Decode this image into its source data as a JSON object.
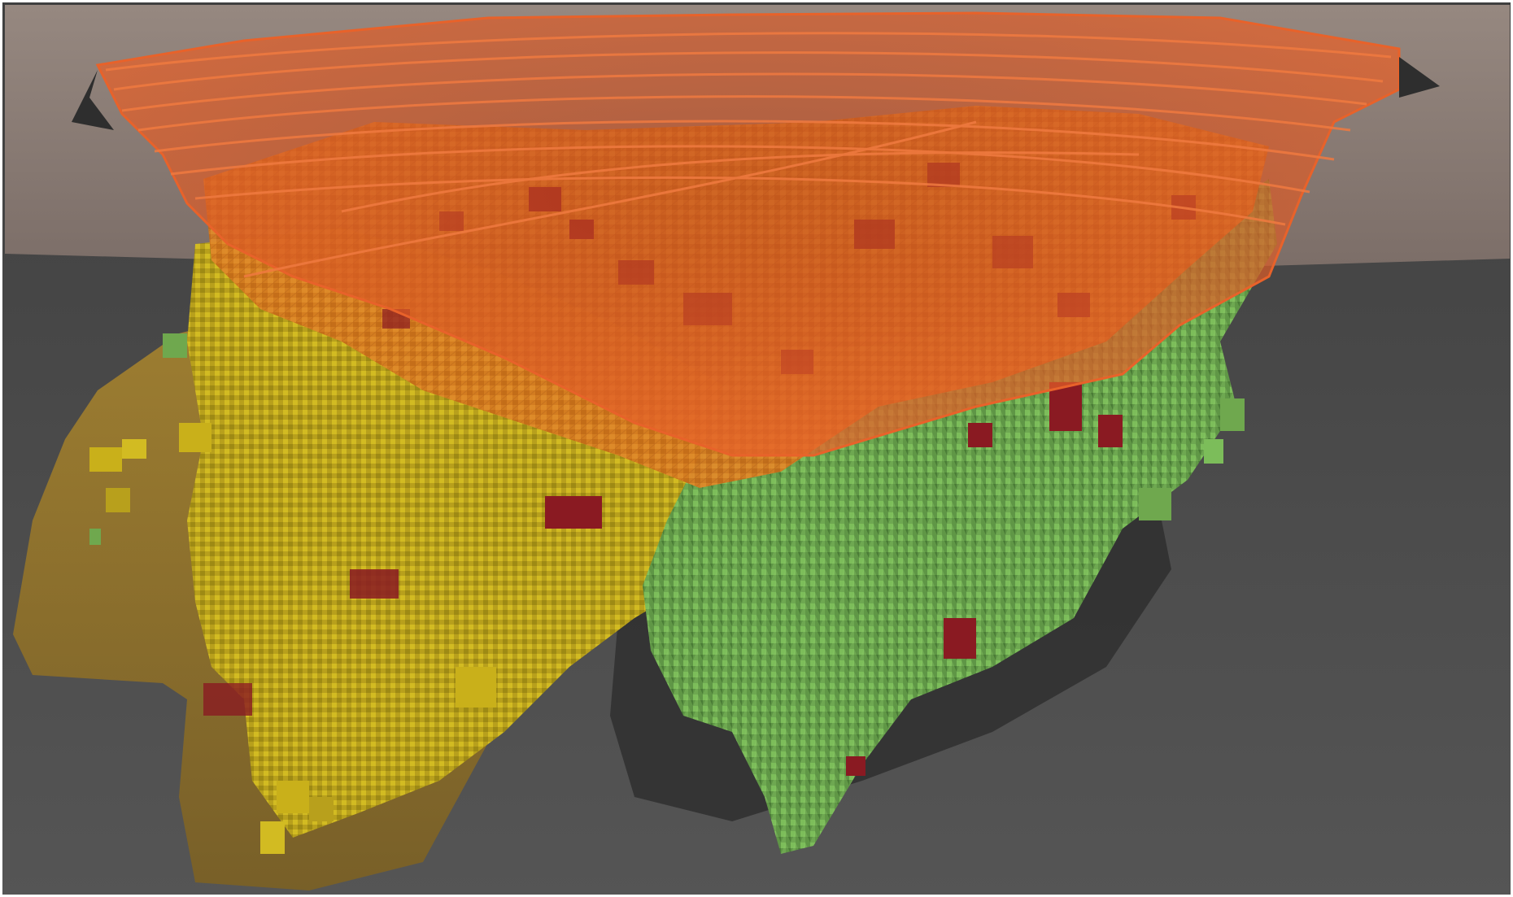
{
  "scene": {
    "type": "3d-geological-block-model-render",
    "colors": {
      "background_dark": "#4a4a4a",
      "topography_surface": "#8a7a72",
      "pit_shell_orange": "#e8622a",
      "block_orange": "#d97a1f",
      "block_red": "#8a1a22",
      "block_yellow": "#c9b01a",
      "block_green": "#6fa84e",
      "ore_envelope_tan": "#9a7a2e",
      "ore_envelope_dark": "#2e2e2e"
    }
  }
}
